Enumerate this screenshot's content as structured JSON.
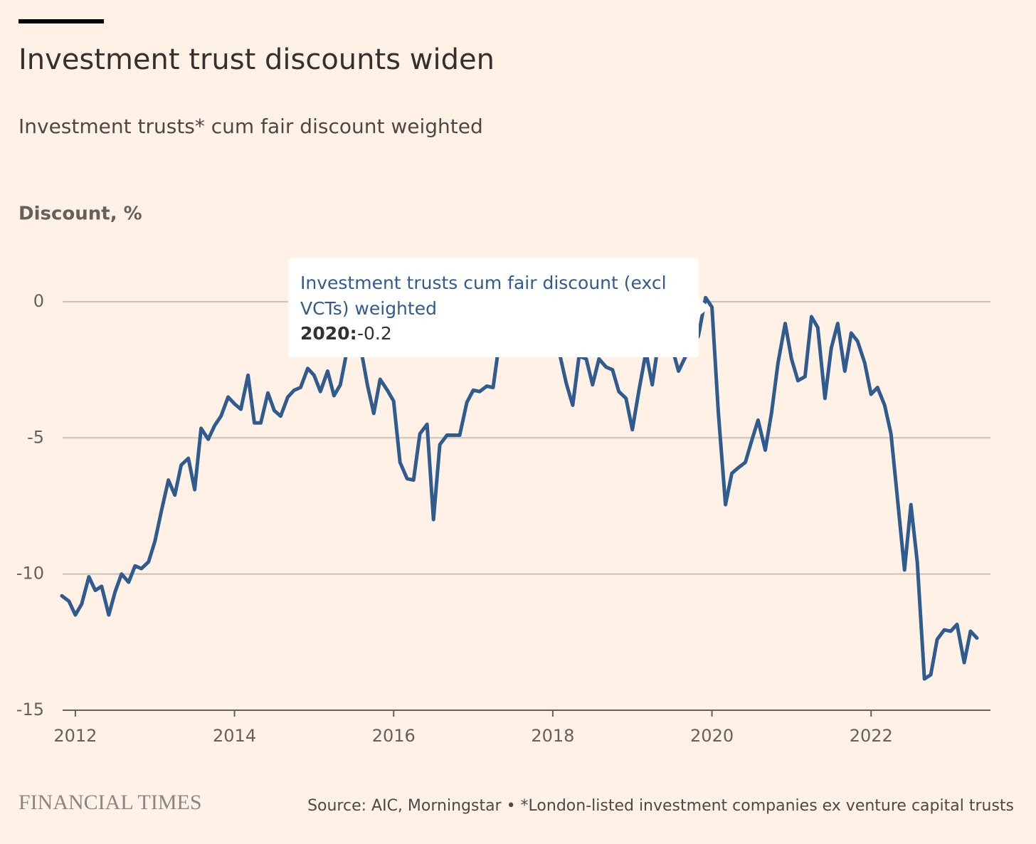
{
  "chart_data": {
    "type": "line",
    "title": "Investment trust discounts widen",
    "subtitle": "Investment trusts* cum fair discount weighted",
    "y_axis_label": "Discount, %",
    "x": [
      2011.83,
      2011.92,
      2012.0,
      2012.08,
      2012.17,
      2012.25,
      2012.33,
      2012.42,
      2012.5,
      2012.58,
      2012.67,
      2012.75,
      2012.83,
      2012.92,
      2013.0,
      2013.08,
      2013.17,
      2013.25,
      2013.33,
      2013.42,
      2013.5,
      2013.58,
      2013.67,
      2013.75,
      2013.83,
      2013.92,
      2014.0,
      2014.08,
      2014.17,
      2014.25,
      2014.33,
      2014.42,
      2014.5,
      2014.58,
      2014.67,
      2014.75,
      2014.83,
      2014.92,
      2015.0,
      2015.08,
      2015.17,
      2015.25,
      2015.33,
      2015.42,
      2015.5,
      2015.58,
      2015.67,
      2015.75,
      2015.83,
      2015.92,
      2016.0,
      2016.08,
      2016.17,
      2016.25,
      2016.33,
      2016.42,
      2016.5,
      2016.58,
      2016.67,
      2016.75,
      2016.83,
      2016.92,
      2017.0,
      2017.08,
      2017.17,
      2017.25,
      2017.33,
      2017.42,
      2017.5,
      2017.58,
      2017.67,
      2017.75,
      2017.83,
      2017.92,
      2018.0,
      2018.08,
      2018.17,
      2018.25,
      2018.33,
      2018.42,
      2018.5,
      2018.58,
      2018.67,
      2018.75,
      2018.83,
      2018.92,
      2019.0,
      2019.08,
      2019.17,
      2019.25,
      2019.33,
      2019.42,
      2019.5,
      2019.58,
      2019.67,
      2019.75,
      2019.83,
      2019.92,
      2020.0,
      2020.08,
      2020.17,
      2020.25,
      2020.33,
      2020.42,
      2020.5,
      2020.58,
      2020.67,
      2020.75,
      2020.83,
      2020.92,
      2021.0,
      2021.08,
      2021.17,
      2021.25,
      2021.33,
      2021.42,
      2021.5,
      2021.58,
      2021.67,
      2021.75,
      2021.83,
      2021.92,
      2022.0,
      2022.08,
      2022.17,
      2022.25,
      2022.33,
      2022.42,
      2022.5,
      2022.58,
      2022.67,
      2022.75,
      2022.83,
      2022.92,
      2023.0,
      2023.08,
      2023.17,
      2023.25,
      2023.33
    ],
    "series": [
      {
        "name": "Investment trusts cum fair discount (excl VCTs) weighted",
        "color": "#2f5b8f",
        "values": [
          -10.8,
          -11.0,
          -11.5,
          -11.1,
          -10.1,
          -10.6,
          -10.45,
          -11.5,
          -10.65,
          -10.0,
          -10.3,
          -9.7,
          -9.8,
          -9.55,
          -8.8,
          -7.7,
          -6.55,
          -7.1,
          -6.0,
          -5.75,
          -6.9,
          -4.65,
          -5.05,
          -4.55,
          -4.2,
          -3.5,
          -3.75,
          -3.95,
          -2.7,
          -4.45,
          -4.45,
          -3.35,
          -4.0,
          -4.2,
          -3.5,
          -3.25,
          -3.15,
          -2.45,
          -2.7,
          -3.3,
          -2.55,
          -3.45,
          -3.05,
          -1.7,
          -1.2,
          -1.6,
          -3.05,
          -4.1,
          -2.85,
          -3.25,
          -3.65,
          -5.9,
          -6.5,
          -6.55,
          -4.85,
          -4.5,
          -8.0,
          -5.25,
          -4.9,
          -4.9,
          -4.9,
          -3.7,
          -3.25,
          -3.3,
          -3.1,
          -3.15,
          -1.45,
          -0.95,
          -0.8,
          -1.15,
          -1.45,
          -1.0,
          -0.9,
          -1.2,
          -1.6,
          -1.85,
          -3.0,
          -3.8,
          -2.0,
          -2.1,
          -3.05,
          -2.1,
          -2.4,
          -2.5,
          -3.3,
          -3.55,
          -4.7,
          -3.3,
          -1.85,
          -3.05,
          -1.45,
          -1.6,
          -1.7,
          -2.55,
          -2.0,
          -1.7,
          -1.25,
          0.15,
          -0.2,
          -4.05,
          -7.45,
          -6.3,
          -6.1,
          -5.9,
          -5.1,
          -4.35,
          -5.45,
          -4.05,
          -2.25,
          -0.8,
          -2.1,
          -2.9,
          -2.75,
          -0.55,
          -0.95,
          -3.55,
          -1.7,
          -0.8,
          -2.55,
          -1.15,
          -1.45,
          -2.25,
          -3.4,
          -3.15,
          -3.8,
          -4.85,
          -7.2,
          -9.85,
          -7.45,
          -9.55,
          -13.85,
          -13.7,
          -12.4,
          -12.05,
          -12.1,
          -11.85,
          -13.25,
          -12.1,
          -12.35
        ]
      }
    ],
    "xlim": [
      2011.84,
      2023.5
    ],
    "xticks": [
      2012,
      2014,
      2016,
      2018,
      2020,
      2022
    ],
    "ylim": [
      -15,
      1.5
    ],
    "yticks": [
      -15,
      -10,
      -5,
      0
    ],
    "grid": true,
    "tooltip": {
      "x_label": "2020:",
      "value": -0.2
    },
    "brand": "FINANCIAL TIMES",
    "source": "Source: AIC, Morningstar • *London-listed investment companies ex venture capital trusts"
  }
}
